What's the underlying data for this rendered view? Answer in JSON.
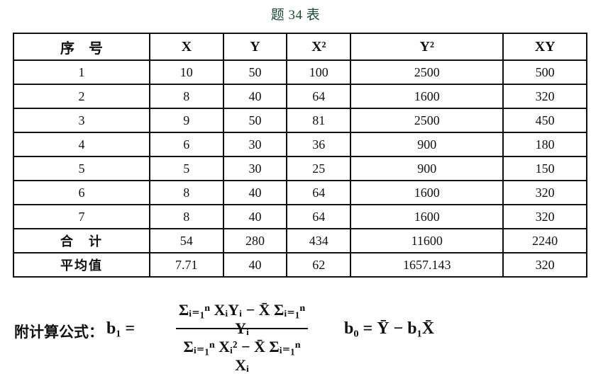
{
  "title": "题 34 表",
  "table": {
    "headers": [
      "序　号",
      "X",
      "Y",
      "X²",
      "Y²",
      "XY"
    ],
    "rows": [
      [
        "1",
        "10",
        "50",
        "100",
        "2500",
        "500"
      ],
      [
        "2",
        "8",
        "40",
        "64",
        "1600",
        "320"
      ],
      [
        "3",
        "9",
        "50",
        "81",
        "2500",
        "450"
      ],
      [
        "4",
        "6",
        "30",
        "36",
        "900",
        "180"
      ],
      [
        "5",
        "5",
        "30",
        "25",
        "900",
        "150"
      ],
      [
        "6",
        "8",
        "40",
        "64",
        "1600",
        "320"
      ],
      [
        "7",
        "8",
        "40",
        "64",
        "1600",
        "320"
      ],
      [
        "合　计",
        "54",
        "280",
        "434",
        "11600",
        "2240"
      ],
      [
        "平均值",
        "7.71",
        "40",
        "62",
        "1657.143",
        "320"
      ]
    ]
  },
  "formula": {
    "label": "附计算公式：",
    "b1_lhs": "b₁ =",
    "b1_numerator": "Σᵢ₌₁ⁿ XᵢYᵢ − X̄ Σᵢ₌₁ⁿ Yᵢ",
    "b1_denominator": "Σᵢ₌₁ⁿ Xᵢ² − X̄ Σᵢ₌₁ⁿ Xᵢ",
    "b0": "b₀ = Ȳ − b₁X̄"
  }
}
